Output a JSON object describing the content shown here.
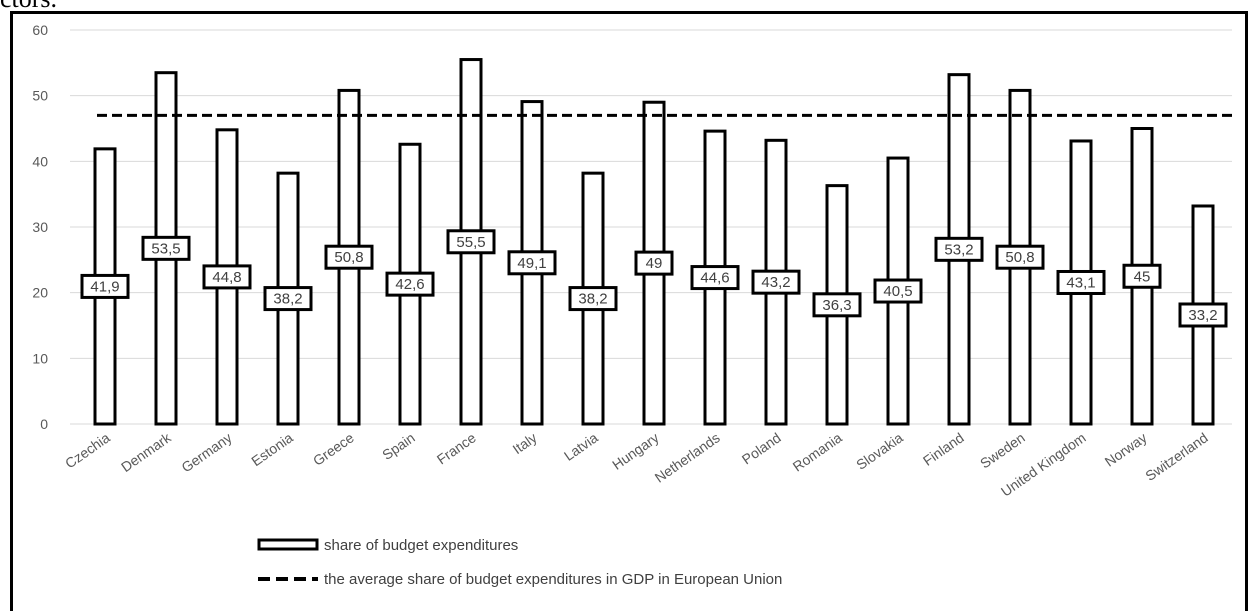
{
  "header_fragment": "ctors.",
  "chart_data": {
    "type": "bar",
    "categories": [
      "Czechia",
      "Denmark",
      "Germany",
      "Estonia",
      "Greece",
      "Spain",
      "France",
      "Italy",
      "Latvia",
      "Hungary",
      "Netherlands",
      "Poland",
      "Romania",
      "Slovakia",
      "Finland",
      "Sweden",
      "United Kingdom",
      "Norway",
      "Switzerland"
    ],
    "series": [
      {
        "name": "share of budget expenditures",
        "values": [
          41.9,
          53.5,
          44.8,
          38.2,
          50.8,
          42.6,
          55.5,
          49.1,
          38.2,
          49,
          44.6,
          43.2,
          36.3,
          40.5,
          53.2,
          50.8,
          43.1,
          45,
          33.2
        ],
        "labels": [
          "41,9",
          "53,5",
          "44,8",
          "38,2",
          "50,8",
          "42,6",
          "55,5",
          "49,1",
          "38,2",
          "49",
          "44,6",
          "43,2",
          "36,3",
          "40,5",
          "53,2",
          "50,8",
          "43,1",
          "45",
          "33,2"
        ]
      }
    ],
    "reference_line": {
      "name": "the average share of budget expenditures in GDP in European Union",
      "value": 47
    },
    "ylim": [
      0,
      60
    ],
    "yticks": [
      0,
      10,
      20,
      30,
      40,
      50,
      60
    ],
    "grid": true,
    "legend_position": "bottom",
    "title": "",
    "xlabel": "",
    "ylabel": ""
  }
}
